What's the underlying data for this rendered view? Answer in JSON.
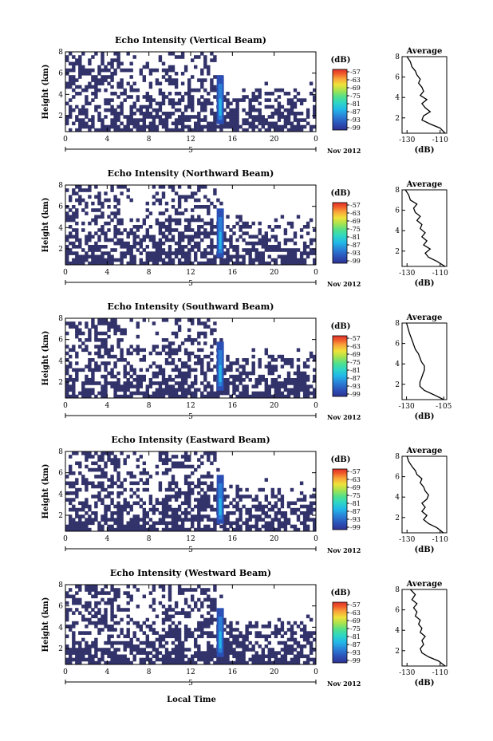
{
  "figure": {
    "xlabel": "Local Time",
    "date_label": "Nov 2012",
    "day_label": "5",
    "ylabel": "Height (km)",
    "colorbar_unit": "(dB)",
    "colorbar_ticks": [
      "-57",
      "-63",
      "-69",
      "-75",
      "-81",
      "-87",
      "-93",
      "-99"
    ],
    "colorbar_colors": [
      "#2e3192",
      "#2b4fb5",
      "#2a7fd6",
      "#22b8e8",
      "#2fd6c4",
      "#53e08a",
      "#a6e34f",
      "#f0e23a",
      "#f9a23a",
      "#f05a2a",
      "#e0302a"
    ],
    "field_color": "#33336b",
    "profile_title": "Average",
    "profile_unit": "(dB)"
  },
  "chart_data": [
    {
      "type": "heatmap",
      "title": "Echo Intensity (Vertical Beam)",
      "xlabel": "Local Time",
      "ylabel": "Height (km)",
      "x_ticks": [
        "0",
        "4",
        "8",
        "12",
        "16",
        "20",
        "0"
      ],
      "y_ticks": [
        "2",
        "4",
        "6",
        "8"
      ],
      "xlim": [
        0,
        24
      ],
      "ylim": [
        0.5,
        8
      ],
      "colorbar": {
        "label": "(dB)",
        "ticks": [
          -57,
          -63,
          -69,
          -75,
          -81,
          -87,
          -93,
          -99
        ],
        "range": [
          -99,
          -57
        ]
      },
      "profile": {
        "title": "Average",
        "xlabel": "(dB)",
        "x_ticks": [
          "-130",
          "-110"
        ],
        "xlim": [
          -133,
          -106
        ],
        "y_ticks": [
          "2",
          "4",
          "6",
          "8"
        ],
        "x": [
          -107,
          -110,
          -116,
          -121,
          -120,
          -116,
          -119,
          -121,
          -118,
          -122,
          -120,
          -121,
          -123,
          -122,
          -124,
          -125,
          -127,
          -128,
          -130
        ],
        "y": [
          0.5,
          1.0,
          1.4,
          1.8,
          2.2,
          2.6,
          3.0,
          3.4,
          3.8,
          4.2,
          4.6,
          5.0,
          5.4,
          5.8,
          6.2,
          6.6,
          7.0,
          7.5,
          8.0
        ]
      }
    },
    {
      "type": "heatmap",
      "title": "Echo Intensity (Northward Beam)",
      "xlabel": "Local Time",
      "ylabel": "Height (km)",
      "x_ticks": [
        "0",
        "4",
        "8",
        "12",
        "16",
        "20",
        "0"
      ],
      "y_ticks": [
        "2",
        "4",
        "6",
        "8"
      ],
      "xlim": [
        0,
        24
      ],
      "ylim": [
        0.5,
        8
      ],
      "colorbar": {
        "label": "(dB)",
        "ticks": [
          -57,
          -63,
          -69,
          -75,
          -81,
          -87,
          -93,
          -99
        ],
        "range": [
          -99,
          -57
        ]
      },
      "profile": {
        "title": "Average",
        "xlabel": "(dB)",
        "x_ticks": [
          "-130",
          "-110"
        ],
        "xlim": [
          -133,
          -106
        ],
        "y_ticks": [
          "2",
          "4",
          "6",
          "8"
        ],
        "x": [
          -107,
          -112,
          -117,
          -119,
          -116,
          -120,
          -118,
          -121,
          -119,
          -122,
          -121,
          -124,
          -122,
          -125,
          -126,
          -124,
          -128,
          -129,
          -131
        ],
        "y": [
          0.5,
          1.0,
          1.4,
          1.8,
          2.2,
          2.6,
          3.0,
          3.4,
          3.8,
          4.2,
          4.6,
          5.0,
          5.4,
          5.8,
          6.2,
          6.6,
          7.0,
          7.5,
          8.0
        ]
      }
    },
    {
      "type": "heatmap",
      "title": "Echo Intensity (Southward Beam)",
      "xlabel": "Local Time",
      "ylabel": "Height (km)",
      "x_ticks": [
        "0",
        "4",
        "8",
        "12",
        "16",
        "20",
        "0"
      ],
      "y_ticks": [
        "2",
        "4",
        "6",
        "8"
      ],
      "xlim": [
        0,
        24
      ],
      "ylim": [
        0.5,
        8
      ],
      "colorbar": {
        "label": "(dB)",
        "ticks": [
          -57,
          -63,
          -69,
          -75,
          -81,
          -87,
          -93,
          -99
        ],
        "range": [
          -99,
          -57
        ]
      },
      "profile": {
        "title": "Average",
        "xlabel": "(dB)",
        "x_ticks": [
          "-130",
          "-105"
        ],
        "xlim": [
          -133,
          -103
        ],
        "y_ticks": [
          "2",
          "4",
          "6",
          "8"
        ],
        "x": [
          -105,
          -112,
          -118,
          -121,
          -121,
          -120,
          -119,
          -118,
          -118,
          -120,
          -121,
          -122,
          -124,
          -125,
          -126,
          -127,
          -128,
          -129,
          -130
        ],
        "y": [
          0.5,
          1.0,
          1.4,
          1.8,
          2.2,
          2.6,
          3.0,
          3.4,
          3.8,
          4.2,
          4.6,
          5.0,
          5.4,
          5.8,
          6.2,
          6.6,
          7.0,
          7.5,
          8.0
        ]
      }
    },
    {
      "type": "heatmap",
      "title": "Echo Intensity (Eastward Beam)",
      "xlabel": "Local Time",
      "ylabel": "Height (km)",
      "x_ticks": [
        "0",
        "4",
        "8",
        "12",
        "16",
        "20",
        "0"
      ],
      "y_ticks": [
        "2",
        "4",
        "6",
        "8"
      ],
      "xlim": [
        0,
        24
      ],
      "ylim": [
        0.5,
        8
      ],
      "colorbar": {
        "label": "(dB)",
        "ticks": [
          -57,
          -63,
          -69,
          -75,
          -81,
          -87,
          -93,
          -99
        ],
        "range": [
          -99,
          -57
        ]
      },
      "profile": {
        "title": "Average",
        "xlabel": "(dB)",
        "x_ticks": [
          "-130",
          "-110"
        ],
        "xlim": [
          -133,
          -106
        ],
        "y_ticks": [
          "2",
          "4",
          "6",
          "8"
        ],
        "x": [
          -108,
          -112,
          -117,
          -120,
          -118,
          -121,
          -119,
          -121,
          -118,
          -117,
          -119,
          -120,
          -122,
          -121,
          -124,
          -125,
          -127,
          -129,
          -130
        ],
        "y": [
          0.5,
          1.0,
          1.4,
          1.8,
          2.2,
          2.6,
          3.0,
          3.4,
          3.8,
          4.2,
          4.6,
          5.0,
          5.4,
          5.8,
          6.2,
          6.6,
          7.0,
          7.5,
          8.0
        ]
      }
    },
    {
      "type": "heatmap",
      "title": "Echo Intensity (Westward Beam)",
      "xlabel": "Local Time",
      "ylabel": "Height (km)",
      "x_ticks": [
        "0",
        "4",
        "8",
        "12",
        "16",
        "20",
        "0"
      ],
      "y_ticks": [
        "2",
        "4",
        "6",
        "8"
      ],
      "xlim": [
        0,
        24
      ],
      "ylim": [
        0.5,
        8
      ],
      "colorbar": {
        "label": "(dB)",
        "ticks": [
          -57,
          -63,
          -69,
          -75,
          -81,
          -87,
          -93,
          -99
        ],
        "range": [
          -99,
          -57
        ]
      },
      "profile": {
        "title": "Average",
        "xlabel": "(dB)",
        "x_ticks": [
          "-130",
          "-110"
        ],
        "xlim": [
          -133,
          -106
        ],
        "y_ticks": [
          "2",
          "4",
          "6",
          "8"
        ],
        "x": [
          -107,
          -111,
          -117,
          -121,
          -122,
          -120,
          -121,
          -119,
          -122,
          -121,
          -123,
          -122,
          -125,
          -124,
          -126,
          -124,
          -127,
          -125,
          -128
        ],
        "y": [
          0.5,
          1.0,
          1.4,
          1.8,
          2.2,
          2.6,
          3.0,
          3.4,
          3.8,
          4.2,
          4.6,
          5.0,
          5.4,
          5.8,
          6.2,
          6.6,
          7.0,
          7.5,
          8.0
        ]
      }
    }
  ]
}
